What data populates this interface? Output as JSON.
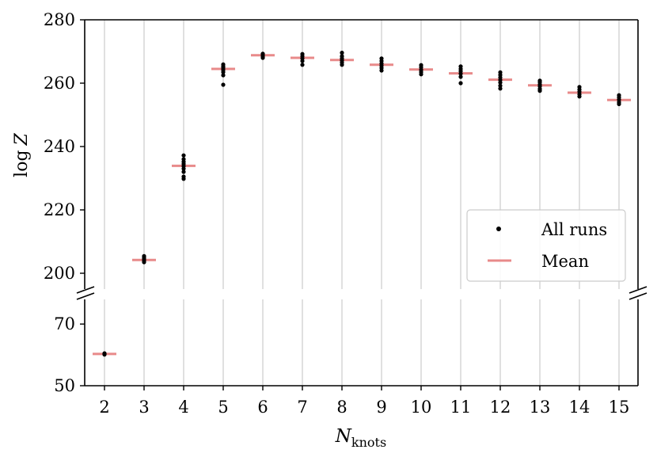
{
  "chart_data": {
    "type": "scatter",
    "xlabel_base": "N",
    "xlabel_sub": "knots",
    "ylabel_base": "log",
    "ylabel_var": "Z",
    "x_ticks": [
      "2",
      "3",
      "4",
      "5",
      "6",
      "7",
      "8",
      "9",
      "10",
      "11",
      "12",
      "13",
      "14",
      "15"
    ],
    "y_axis_upper": {
      "range": [
        195,
        280
      ],
      "ticks": [
        "200",
        "220",
        "240",
        "260",
        "280"
      ]
    },
    "y_axis_lower": {
      "range": [
        50,
        78
      ],
      "ticks": [
        "50",
        "70"
      ]
    },
    "grid": "vertical",
    "legend": {
      "placement": "right",
      "entries": [
        "All runs",
        "Mean"
      ]
    },
    "colors": {
      "points": "#000000",
      "mean": "#e88a8a",
      "grid": "#d3d3d3"
    },
    "series": [
      {
        "name": "All runs",
        "points": [
          {
            "x": 2,
            "y": [
              60.1,
              60.3,
              60.5
            ]
          },
          {
            "x": 3,
            "y": [
              203.5,
              204.0,
              204.5,
              205.0,
              205.4
            ]
          },
          {
            "x": 4,
            "y": [
              229.8,
              230.5,
              232.0,
              233.0,
              233.8,
              234.5,
              235.2,
              236.0,
              237.2
            ]
          },
          {
            "x": 5,
            "y": [
              259.5,
              262.5,
              263.5,
              264.2,
              264.8,
              265.3,
              265.9
            ]
          },
          {
            "x": 6,
            "y": [
              268.0,
              268.5,
              269.0,
              269.3
            ]
          },
          {
            "x": 7,
            "y": [
              265.8,
              267.0,
              267.8,
              268.5,
              269.2
            ]
          },
          {
            "x": 8,
            "y": [
              265.8,
              266.5,
              267.2,
              267.8,
              268.5,
              269.6
            ]
          },
          {
            "x": 9,
            "y": [
              264.0,
              264.8,
              265.5,
              266.2,
              267.0,
              267.8
            ]
          },
          {
            "x": 10,
            "y": [
              262.8,
              263.5,
              264.2,
              265.0,
              265.7
            ]
          },
          {
            "x": 11,
            "y": [
              260.0,
              262.0,
              263.0,
              263.8,
              264.5,
              265.3
            ]
          },
          {
            "x": 12,
            "y": [
              258.3,
              259.2,
              260.2,
              261.0,
              261.8,
              262.6,
              263.4
            ]
          },
          {
            "x": 13,
            "y": [
              257.6,
              258.2,
              259.0,
              259.6,
              260.3,
              260.8
            ]
          },
          {
            "x": 14,
            "y": [
              255.8,
              256.5,
              257.3,
              258.0,
              258.8
            ]
          },
          {
            "x": 15,
            "y": [
              253.4,
              254.0,
              254.8,
              255.5,
              256.2
            ]
          }
        ]
      },
      {
        "name": "Mean",
        "values": [
          {
            "x": 2,
            "y": 60.3
          },
          {
            "x": 3,
            "y": 204.2
          },
          {
            "x": 4,
            "y": 233.9
          },
          {
            "x": 5,
            "y": 264.5
          },
          {
            "x": 6,
            "y": 268.8
          },
          {
            "x": 7,
            "y": 268.0
          },
          {
            "x": 8,
            "y": 267.3
          },
          {
            "x": 9,
            "y": 265.8
          },
          {
            "x": 10,
            "y": 264.3
          },
          {
            "x": 11,
            "y": 263.1
          },
          {
            "x": 12,
            "y": 261.1
          },
          {
            "x": 13,
            "y": 259.3
          },
          {
            "x": 14,
            "y": 257.0
          },
          {
            "x": 15,
            "y": 254.7
          }
        ]
      }
    ]
  }
}
